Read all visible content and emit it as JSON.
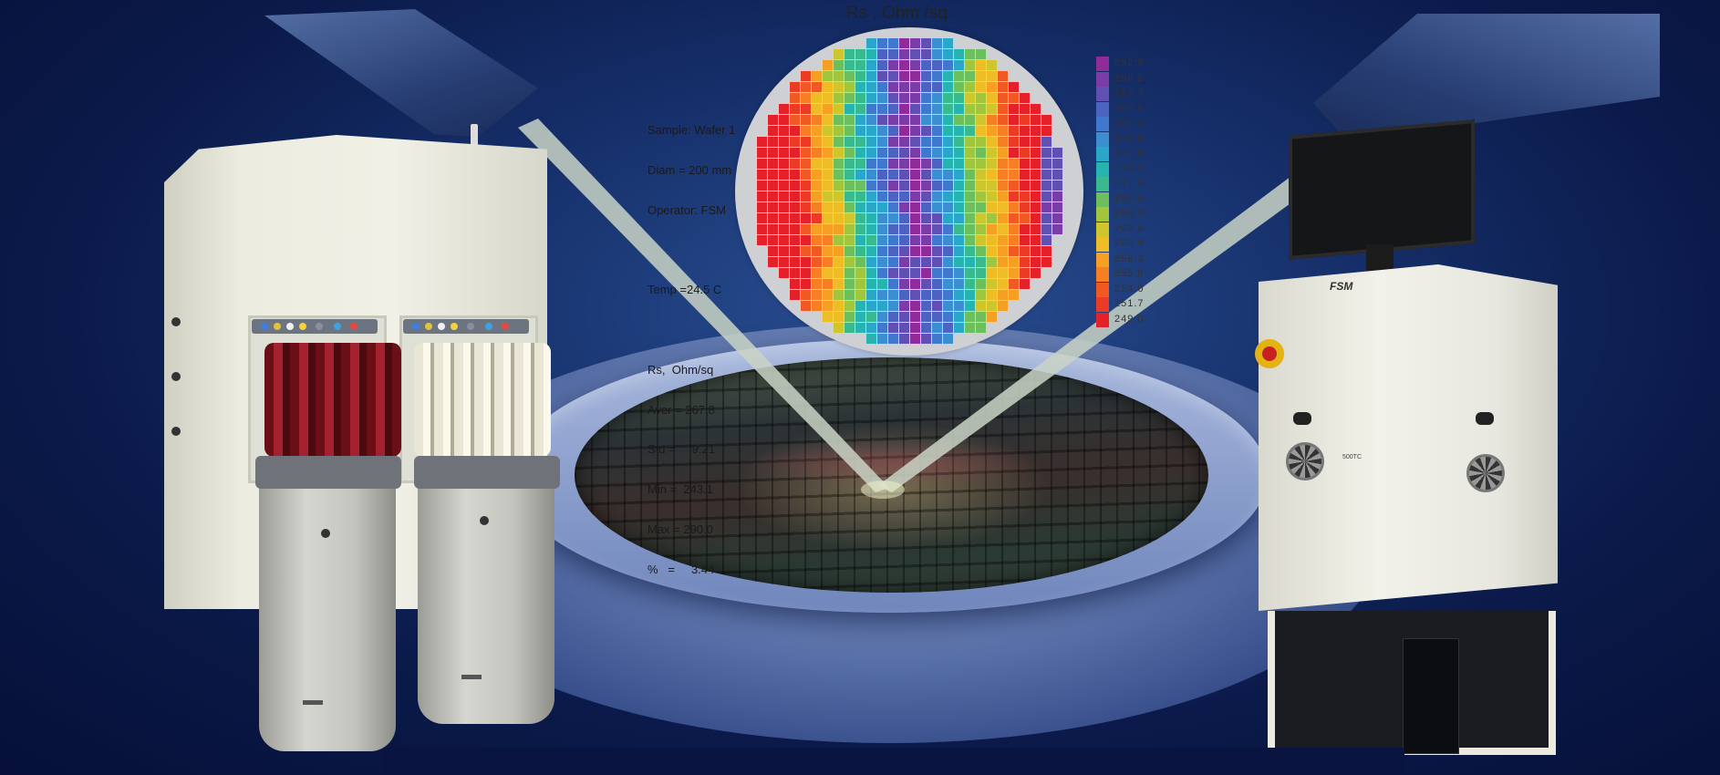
{
  "figure": {
    "title": "Rs , Ohm /sq",
    "stats_lines": [
      "Sample: Wafer 1",
      "Diam = 200 mm",
      "Operator: FSM",
      "",
      "Temp =24.5 C",
      "",
      "Rs,  Ohm/sq",
      "Aver = 267.8",
      "Std =     9.21",
      "Min =  243.1",
      "Max = 290.0",
      "%   =     3.44"
    ],
    "legend_labels": [
      "292.9",
      "290.2",
      "287.7",
      "285.0",
      "282.3",
      "279.6",
      "277.0",
      "274.3",
      "271.6",
      "269.0",
      "266.3",
      "263.6",
      "260.9",
      "258.3",
      "255.6",
      "254.0",
      "251.7",
      "249.0"
    ],
    "legend_colors": [
      "#8f2c9a",
      "#7a3ca6",
      "#6150b4",
      "#4d63c2",
      "#3f78cc",
      "#3b8fd0",
      "#2aa6c9",
      "#27b3b0",
      "#38b98e",
      "#6cbf5c",
      "#a2c53e",
      "#cfc62d",
      "#eebc25",
      "#f6a023",
      "#f57f22",
      "#f05a22",
      "#ec3b25",
      "#e42128"
    ]
  },
  "chart_data": {
    "type": "heatmap",
    "title": "Rs , Ohm /sq",
    "legend_values": [
      292.9,
      290.2,
      287.7,
      285.0,
      282.3,
      279.6,
      277.0,
      274.3,
      271.6,
      269.0,
      266.3,
      263.6,
      260.9,
      258.3,
      255.6,
      254.0,
      251.7,
      249.0
    ],
    "stats": {
      "aver": 267.8,
      "std": 9.21,
      "min": 243.1,
      "max": 290.0,
      "percent": 3.44
    },
    "pattern": "vertical high-Rs band through wafer center; low Rs toward left and right edges"
  },
  "machine_right": {
    "logo": "FSM",
    "model": "500TC"
  },
  "colors": {
    "background": "#0b1a4a",
    "beam": "#c9d3c6",
    "wafer_map_bg": "#cfd0d4"
  }
}
